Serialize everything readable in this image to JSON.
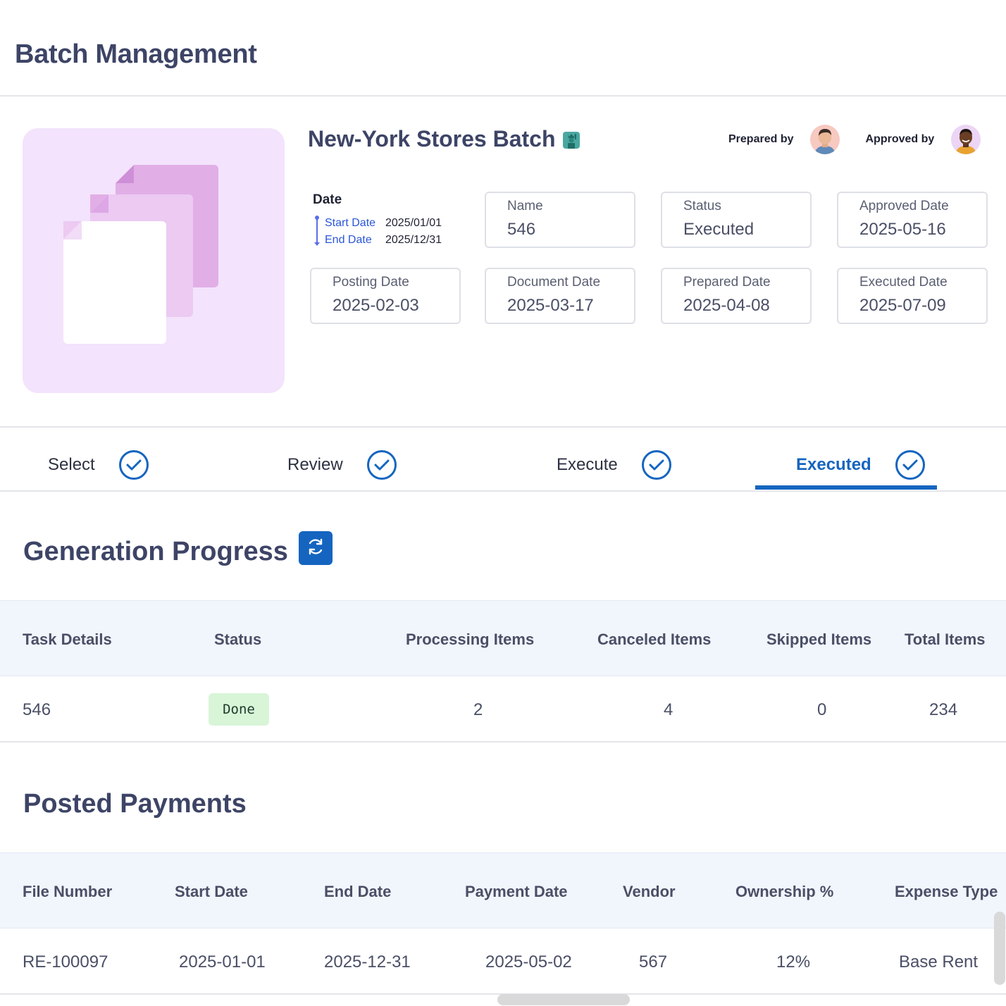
{
  "page": {
    "title": "Batch Management"
  },
  "batch": {
    "name": "New-York Stores Batch",
    "name_icon": "statue-of-liberty-icon",
    "prepared_by_label": "Prepared by",
    "approved_by_label": "Approved by",
    "date": {
      "title": "Date",
      "start_label": "Start Date",
      "start_value": "2025/01/01",
      "end_label": "End Date",
      "end_value": "2025/12/31"
    },
    "fields": [
      {
        "label": "Name",
        "value": "546"
      },
      {
        "label": "Status",
        "value": "Executed"
      },
      {
        "label": "Approved Date",
        "value": "2025-05-16"
      },
      {
        "label": "Posting Date",
        "value": "2025-02-03"
      },
      {
        "label": "Document Date",
        "value": "2025-03-17"
      },
      {
        "label": "Prepared Date",
        "value": "2025-04-08"
      },
      {
        "label": "Executed Date",
        "value": "2025-07-09"
      }
    ]
  },
  "steps": [
    {
      "label": "Select",
      "icon": "check-circle-icon"
    },
    {
      "label": "Review",
      "icon": "check-circle-icon"
    },
    {
      "label": "Execute",
      "icon": "check-circle-icon"
    },
    {
      "label": "Executed",
      "icon": "check-circle-icon",
      "active": true
    }
  ],
  "generation_progress": {
    "title": "Generation Progress",
    "refresh_icon": "refresh-icon",
    "columns": [
      "Task Details",
      "Status",
      "Processing Items",
      "Canceled Items",
      "Skipped Items",
      "Total Items"
    ],
    "rows": [
      {
        "task": "546",
        "status": "Done",
        "processing": "2",
        "canceled": "4",
        "skipped": "0",
        "total": "234"
      }
    ]
  },
  "posted_payments": {
    "title": "Posted Payments",
    "columns": [
      "File Number",
      "Start Date",
      "End Date",
      "Payment Date",
      "Vendor",
      "Ownership %",
      "Expense Type"
    ],
    "rows": [
      {
        "file_number": "RE-100097",
        "start_date": "2025-01-01",
        "end_date": "2025-12-31",
        "payment_date": "2025-05-02",
        "vendor": "567",
        "ownership": "12%",
        "expense_type": "Base Rent"
      }
    ]
  },
  "colors": {
    "accent": "#1565c0",
    "title_text": "#3d4466",
    "visual_bg": "#f3e3fc",
    "table_header_bg": "#f1f5fc",
    "done_badge_bg": "#d8f5d8"
  }
}
